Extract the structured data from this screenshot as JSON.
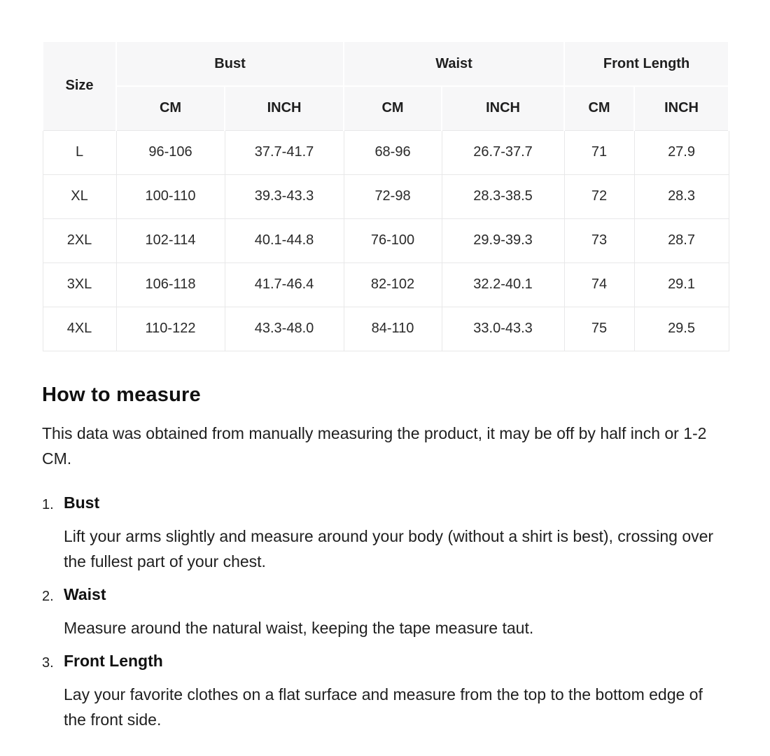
{
  "table": {
    "size_label": "Size",
    "groups": [
      "Bust",
      "Waist",
      "Front Length"
    ],
    "sub_headers": [
      "CM",
      "INCH",
      "CM",
      "INCH",
      "CM",
      "INCH"
    ],
    "rows": [
      {
        "size": "L",
        "cells": [
          "96-106",
          "37.7-41.7",
          "68-96",
          "26.7-37.7",
          "71",
          "27.9"
        ]
      },
      {
        "size": "XL",
        "cells": [
          "100-110",
          "39.3-43.3",
          "72-98",
          "28.3-38.5",
          "72",
          "28.3"
        ]
      },
      {
        "size": "2XL",
        "cells": [
          "102-114",
          "40.1-44.8",
          "76-100",
          "29.9-39.3",
          "73",
          "28.7"
        ]
      },
      {
        "size": "3XL",
        "cells": [
          "106-118",
          "41.7-46.4",
          "82-102",
          "32.2-40.1",
          "74",
          "29.1"
        ]
      },
      {
        "size": "4XL",
        "cells": [
          "110-122",
          "43.3-48.0",
          "84-110",
          "33.0-43.3",
          "75",
          "29.5"
        ]
      }
    ]
  },
  "how_to_measure": {
    "title": "How to measure",
    "intro": "This data was obtained from manually measuring the product, it may be off by half inch or 1-2 CM.",
    "steps": [
      {
        "number": "1.",
        "title": "Bust",
        "description": "Lift your arms slightly and measure around your body (without a shirt is best), crossing over the fullest part of your chest."
      },
      {
        "number": "2.",
        "title": "Waist",
        "description": "Measure around the natural waist, keeping the tape measure taut."
      },
      {
        "number": "3.",
        "title": "Front Length",
        "description": "Lay your favorite clothes on a flat surface and measure from the top to the bottom edge of the front side."
      }
    ]
  },
  "colors": {
    "header_bg": "#f7f7f8",
    "cell_border": "#e8e8e9",
    "text": "#1f1f1f"
  }
}
